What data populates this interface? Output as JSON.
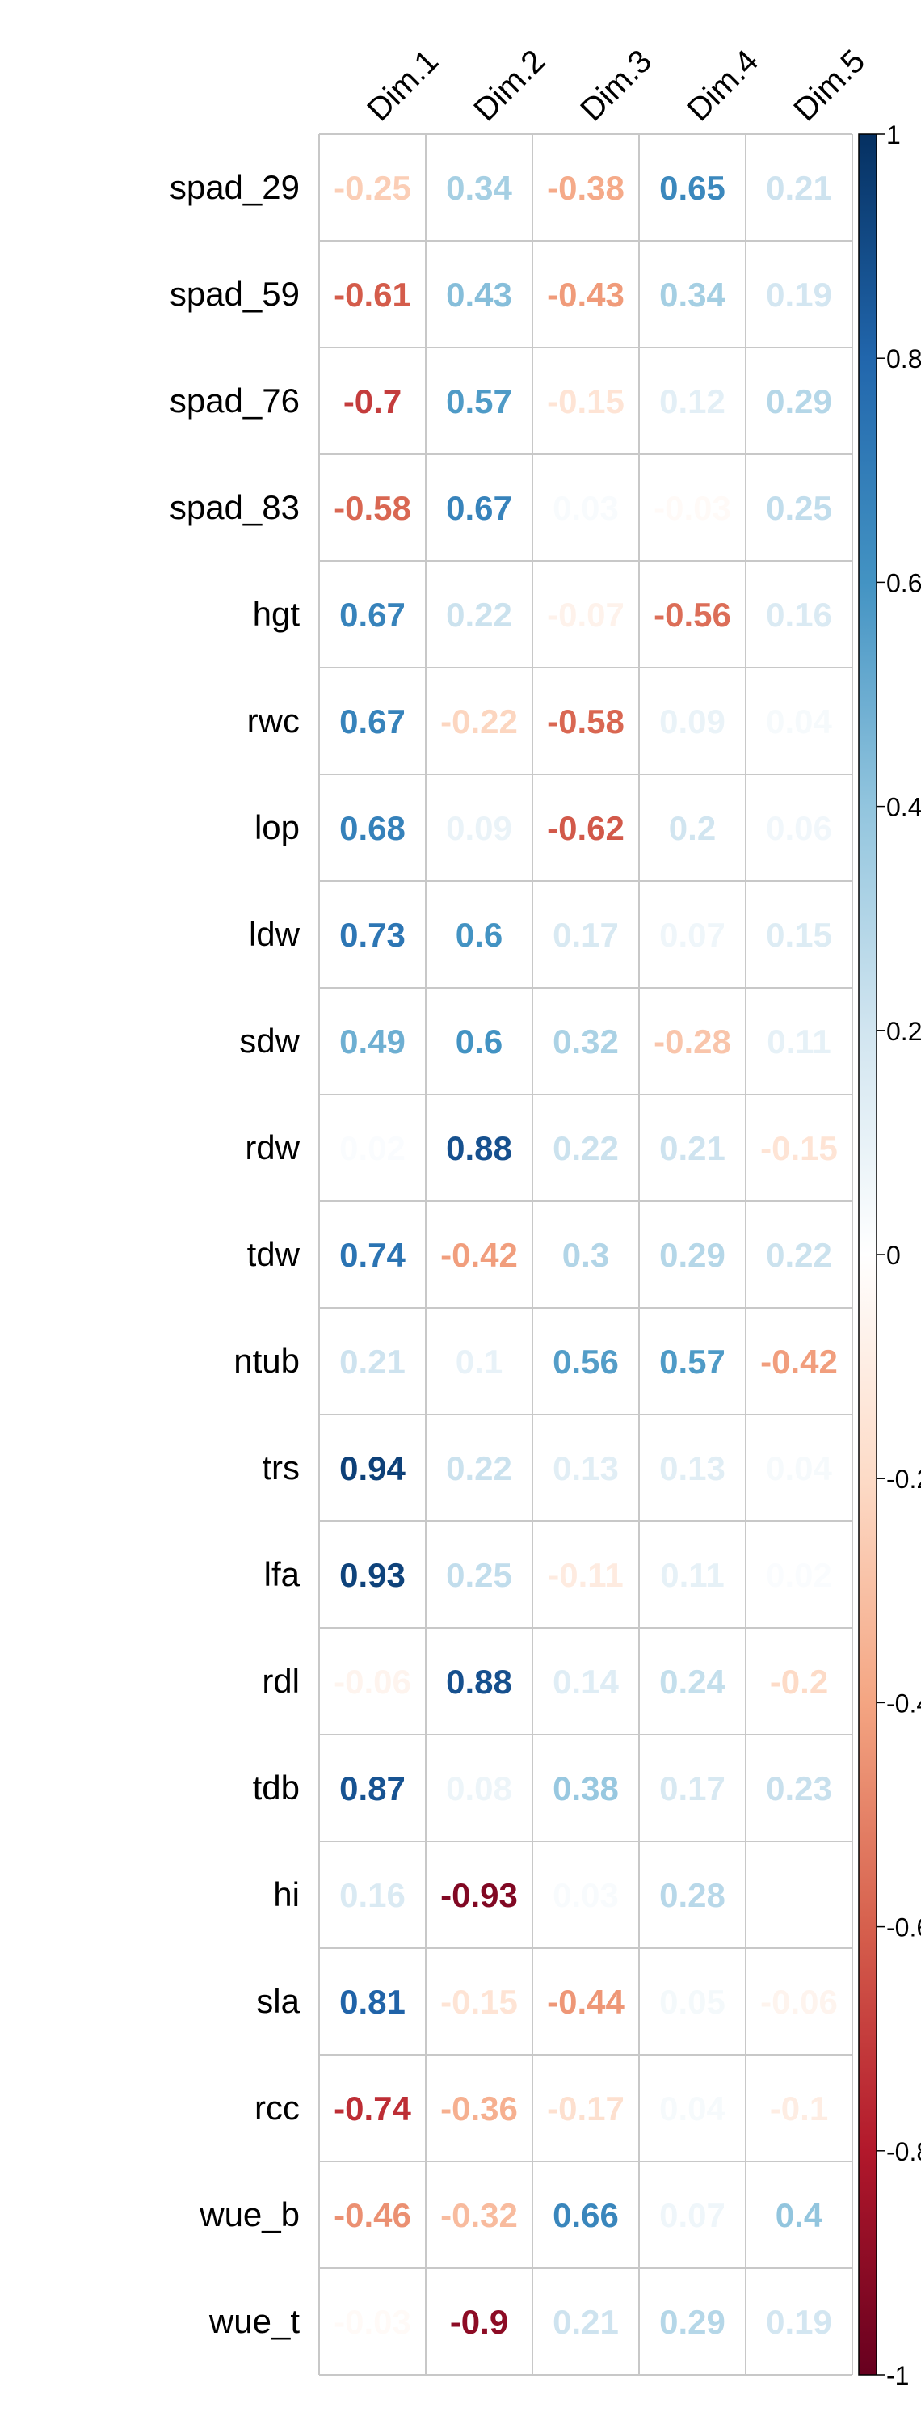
{
  "chart_data": {
    "type": "heatmap",
    "subtype": "correlation-matrix",
    "title": "",
    "xlabel": "",
    "ylabel": "",
    "legend_position": "right",
    "grid": true,
    "value_range": [
      -1,
      1
    ],
    "columns": [
      "Dim.1",
      "Dim.2",
      "Dim.3",
      "Dim.4",
      "Dim.5"
    ],
    "rows": [
      "spad_29",
      "spad_59",
      "spad_76",
      "spad_83",
      "hgt",
      "rwc",
      "lop",
      "ldw",
      "sdw",
      "rdw",
      "tdw",
      "ntub",
      "trs",
      "lfa",
      "rdl",
      "tdb",
      "hi",
      "sla",
      "rcc",
      "wue_b",
      "wue_t"
    ],
    "values": [
      [
        -0.25,
        0.34,
        -0.38,
        0.65,
        0.21
      ],
      [
        -0.61,
        0.43,
        -0.43,
        0.34,
        0.19
      ],
      [
        -0.7,
        0.57,
        -0.15,
        0.12,
        0.29
      ],
      [
        -0.58,
        0.67,
        0.03,
        -0.03,
        0.25
      ],
      [
        0.67,
        0.22,
        -0.07,
        -0.56,
        0.16
      ],
      [
        0.67,
        -0.22,
        -0.58,
        0.09,
        0.04
      ],
      [
        0.68,
        0.09,
        -0.62,
        0.2,
        0.06
      ],
      [
        0.73,
        0.6,
        0.17,
        0.07,
        0.15
      ],
      [
        0.49,
        0.6,
        0.32,
        -0.28,
        0.11
      ],
      [
        0.02,
        0.88,
        0.22,
        0.21,
        -0.15
      ],
      [
        0.74,
        -0.42,
        0.3,
        0.29,
        0.22
      ],
      [
        0.21,
        0.1,
        0.56,
        0.57,
        -0.42
      ],
      [
        0.94,
        0.22,
        0.13,
        0.13,
        0.04
      ],
      [
        0.93,
        0.25,
        -0.11,
        0.11,
        0.02
      ],
      [
        -0.06,
        0.88,
        0.14,
        0.24,
        -0.2
      ],
      [
        0.87,
        0.08,
        0.38,
        0.17,
        0.23
      ],
      [
        0.16,
        -0.93,
        0.03,
        0.28,
        0
      ],
      [
        0.81,
        -0.15,
        -0.44,
        0.05,
        -0.06
      ],
      [
        -0.74,
        -0.36,
        -0.17,
        0.04,
        -0.1
      ],
      [
        -0.46,
        -0.32,
        0.66,
        0.07,
        0.4
      ],
      [
        -0.03,
        -0.9,
        0.21,
        0.29,
        0.19
      ]
    ],
    "colorbar_ticks": [
      {
        "value": 1,
        "label": "1"
      },
      {
        "value": 0.8,
        "label": "0.8"
      },
      {
        "value": 0.6,
        "label": "0.6"
      },
      {
        "value": 0.4,
        "label": "0.4"
      },
      {
        "value": 0.2,
        "label": "0.2"
      },
      {
        "value": 0,
        "label": "0"
      },
      {
        "value": -0.2,
        "label": "-0.2"
      },
      {
        "value": -0.4,
        "label": "-0.4"
      },
      {
        "value": -0.6,
        "label": "-0.6"
      },
      {
        "value": -0.8,
        "label": "-0.8"
      },
      {
        "value": -1,
        "label": "-1"
      }
    ],
    "colors": {
      "negative_extreme": "#67001f",
      "neutral": "#ffffff",
      "positive_extreme": "#053061",
      "grid_line": "#c8c8c8",
      "text": "#000000"
    }
  }
}
